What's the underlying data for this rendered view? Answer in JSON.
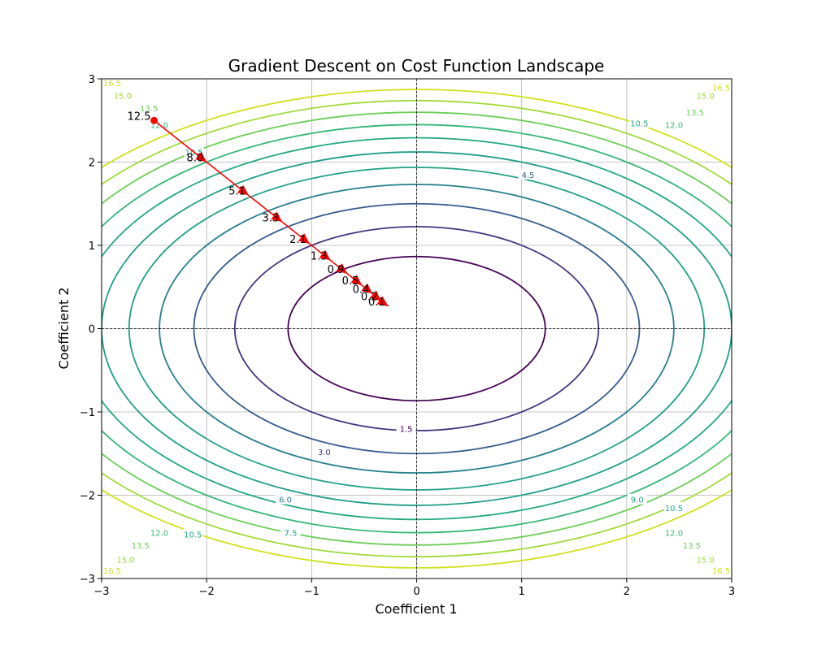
{
  "chart_data": {
    "type": "contour",
    "title": "Gradient Descent on Cost Function Landscape",
    "xlabel": "Coefficient 1",
    "ylabel": "Coefficient 2",
    "xlim": [
      -3,
      3
    ],
    "ylim": [
      -3,
      3
    ],
    "xticks": [
      -3,
      -2,
      -1,
      0,
      1,
      2,
      3
    ],
    "yticks": [
      -3,
      -2,
      -1,
      0,
      1,
      2,
      3
    ],
    "grid": true,
    "colormap": "viridis",
    "cost_function": {
      "a": 1,
      "b": 2
    },
    "contour_levels": [
      {
        "level": 1.5,
        "color": "#440154",
        "label": "1.5"
      },
      {
        "level": 3.0,
        "color": "#46327e",
        "label": "3.0"
      },
      {
        "level": 4.5,
        "color": "#365c8d",
        "label": "4.5"
      },
      {
        "level": 6.0,
        "color": "#277f8e",
        "label": "6.0"
      },
      {
        "level": 7.5,
        "color": "#1fa187",
        "label": "7.5"
      },
      {
        "level": 9.0,
        "color": "#1f9e89",
        "label": "9.0"
      },
      {
        "level": 10.5,
        "color": "#22a884",
        "label": "10.5"
      },
      {
        "level": 12.0,
        "color": "#35b779",
        "label": "12.0"
      },
      {
        "level": 13.5,
        "color": "#6ece58",
        "label": "13.5"
      },
      {
        "level": 15.0,
        "color": "#a0da39",
        "label": "15.0"
      },
      {
        "level": 16.5,
        "color": "#d0e11c",
        "label": "16.5"
      }
    ],
    "contour_label_positions": [
      {
        "level": 1.5,
        "x": -0.1,
        "y": -1.2
      },
      {
        "level": 3.0,
        "x": -0.88,
        "y": -1.48
      },
      {
        "level": 4.5,
        "x": 1.06,
        "y": 1.85
      },
      {
        "level": 6.0,
        "x": -1.25,
        "y": -2.05
      },
      {
        "level": 7.5,
        "x": -1.2,
        "y": -2.45
      },
      {
        "level": 9.0,
        "x": 2.1,
        "y": -2.05
      },
      {
        "level": 10.5,
        "x": -2.12,
        "y": 2.12
      },
      {
        "level": 10.5,
        "x": 2.12,
        "y": 2.47
      },
      {
        "level": 10.5,
        "x": -2.13,
        "y": -2.47
      },
      {
        "level": 10.5,
        "x": 2.45,
        "y": -2.15
      },
      {
        "level": 12.0,
        "x": -2.45,
        "y": 2.45
      },
      {
        "level": 12.0,
        "x": 2.45,
        "y": 2.45
      },
      {
        "level": 12.0,
        "x": -2.45,
        "y": -2.45
      },
      {
        "level": 12.0,
        "x": 2.45,
        "y": -2.45
      },
      {
        "level": 13.5,
        "x": -2.55,
        "y": 2.65
      },
      {
        "level": 13.5,
        "x": 2.65,
        "y": 2.6
      },
      {
        "level": 13.5,
        "x": -2.63,
        "y": -2.6
      },
      {
        "level": 13.5,
        "x": 2.62,
        "y": -2.6
      },
      {
        "level": 15.0,
        "x": -2.8,
        "y": 2.8
      },
      {
        "level": 15.0,
        "x": 2.75,
        "y": 2.8
      },
      {
        "level": 15.0,
        "x": -2.77,
        "y": -2.77
      },
      {
        "level": 15.0,
        "x": 2.75,
        "y": -2.77
      },
      {
        "level": 16.5,
        "x": -2.9,
        "y": 2.95
      },
      {
        "level": 16.5,
        "x": 2.9,
        "y": 2.9
      },
      {
        "level": 16.5,
        "x": -2.9,
        "y": -2.9
      },
      {
        "level": 16.5,
        "x": 2.9,
        "y": -2.9
      }
    ],
    "descent_path": {
      "color": "#ff0000",
      "x": [
        -2.5,
        -2.0,
        -1.6,
        -1.28,
        -1.02,
        -0.82,
        -0.66,
        -0.52,
        -0.42,
        -0.34,
        -0.27
      ],
      "y": [
        2.5,
        2.0,
        1.6,
        1.28,
        1.02,
        0.82,
        0.66,
        0.52,
        0.42,
        0.33,
        0.27
      ],
      "labels": [
        "12.5",
        "8.0",
        "5.1",
        "3.3",
        "2.1",
        "1.3",
        "0.9",
        "0.5",
        "0.4",
        "0.2",
        "0.1"
      ]
    }
  }
}
